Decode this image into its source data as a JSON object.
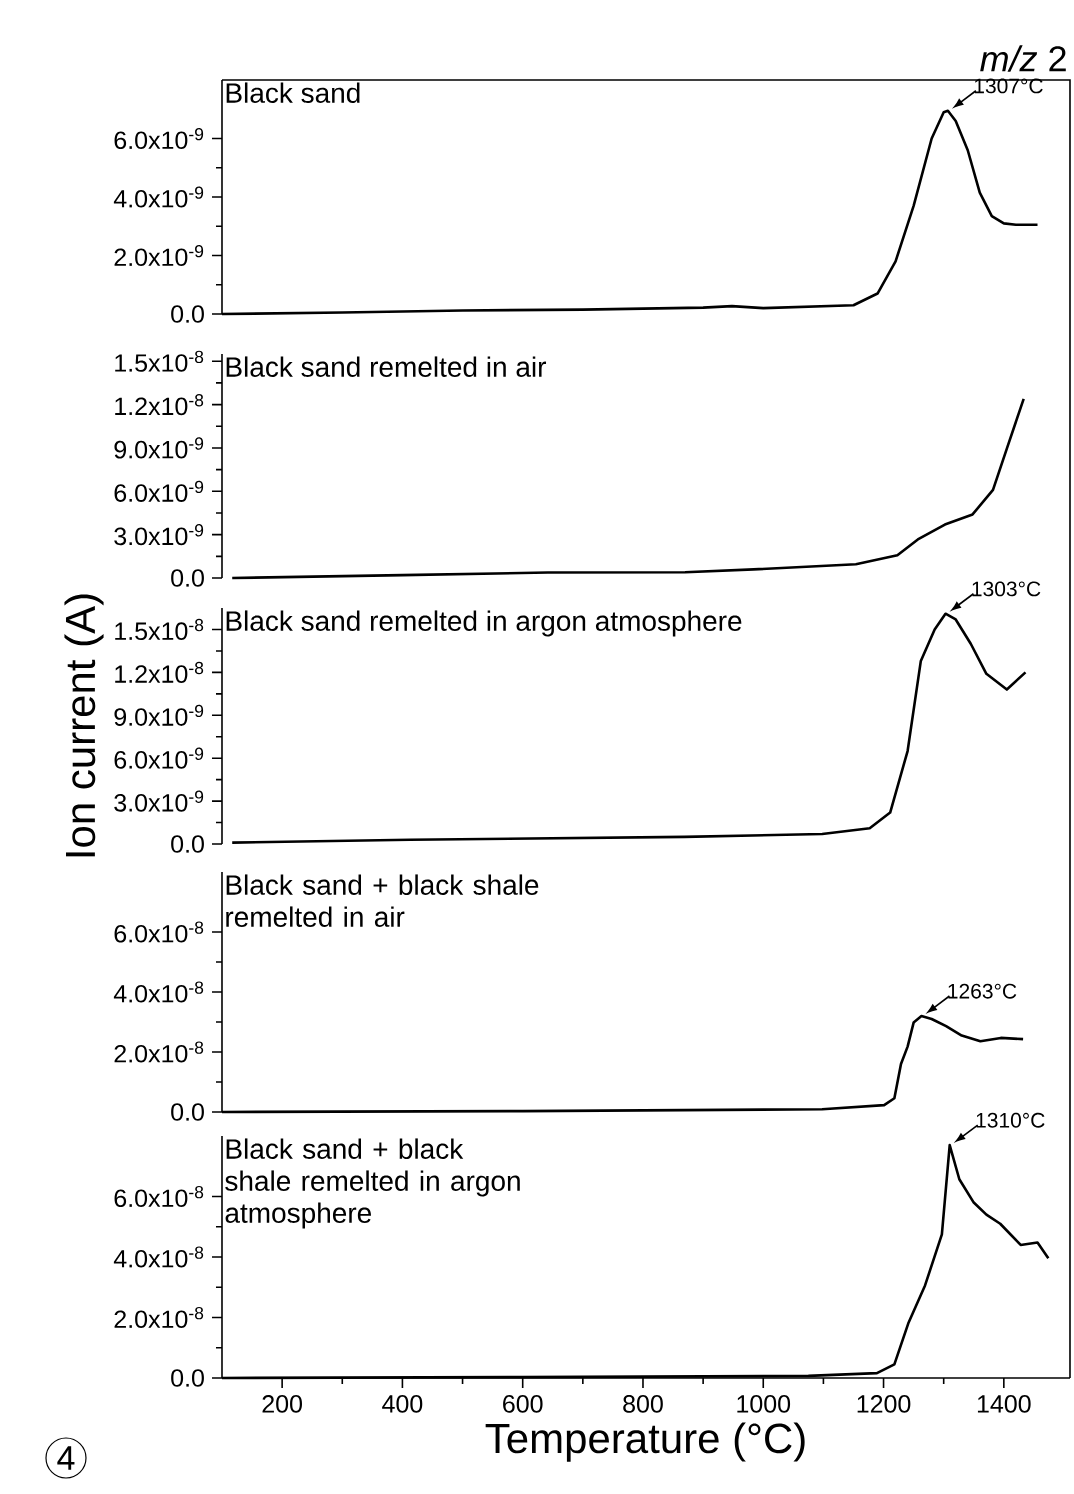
{
  "chart_data": [
    {
      "type": "line",
      "title": "*m/z* 2",
      "xlim": [
        100,
        1510
      ],
      "ylim": [
        0,
        8e-09
      ],
      "tick_labels": "y",
      "yticks": [
        {
          "value": 0,
          "label": "0.0"
        },
        {
          "value": 2e-09,
          "label": "2.0x10$^{-9}$"
        },
        {
          "value": 4e-09,
          "label": "4.0x10$^{-9}$"
        },
        {
          "value": 6e-09,
          "label": "6.0x10$^{-9}$"
        }
      ],
      "annotations": [
        {
          "text": "1307°C",
          "x": 1307,
          "y": 6.95e-09
        }
      ],
      "series": [
        {
          "name": "Black sand",
          "color": "#000000",
          "x": [
            100,
            300,
            500,
            700,
            900,
            948,
            1000,
            1150,
            1190,
            1220,
            1250,
            1280,
            1300,
            1307,
            1320,
            1340,
            1360,
            1380,
            1400,
            1420,
            1456
          ],
          "values": [
            0.0,
            5e-11,
            1.2e-10,
            1.5e-10,
            2.2e-10,
            2.7e-10,
            2e-10,
            3e-10,
            7e-10,
            1.8e-09,
            3.7e-09,
            6e-09,
            6.9e-09,
            6.95e-09,
            6.6e-09,
            5.6e-09,
            4.15e-09,
            3.35e-09,
            3.1e-09,
            3.05e-09,
            3.05e-09
          ]
        }
      ]
    },
    {
      "type": "line",
      "xlim": [
        100,
        1510
      ],
      "ylim": [
        0,
        1.55e-08
      ],
      "tick_labels": "y",
      "yticks": [
        {
          "value": 0,
          "label": "0.0"
        },
        {
          "value": 3e-09,
          "label": "3.0x10$^{-9}$"
        },
        {
          "value": 6e-09,
          "label": "6.0x10$^{-9}$"
        },
        {
          "value": 9e-09,
          "label": "9.0x10$^{-9}$"
        },
        {
          "value": 1.2e-08,
          "label": "1.2x10$^{-8}$"
        },
        {
          "value": 1.5e-08,
          "label": "1.5x10$^{-8}$"
        }
      ],
      "series": [
        {
          "name": "Black sand remelted in air",
          "color": "#000000",
          "x": [
            117,
            400,
            642,
            870,
            984,
            1154,
            1223,
            1257,
            1302,
            1348,
            1382,
            1405,
            1433
          ],
          "values": [
            0.0,
            2e-10,
            3.8e-10,
            4e-10,
            6e-10,
            9.5e-10,
            1.57e-09,
            2.67e-09,
            3.7e-09,
            4.4e-09,
            6.1e-09,
            8.95e-09,
            1.24e-08
          ]
        }
      ]
    },
    {
      "type": "line",
      "ylabel": "Ion current (A)",
      "xlim": [
        100,
        1510
      ],
      "ylim": [
        0,
        1.65e-08
      ],
      "tick_labels": "y",
      "yticks": [
        {
          "value": 0,
          "label": "0.0"
        },
        {
          "value": 3e-09,
          "label": "3.0x10$^{-9}$"
        },
        {
          "value": 6e-09,
          "label": "6.0x10$^{-9}$"
        },
        {
          "value": 9e-09,
          "label": "9.0x10$^{-9}$"
        },
        {
          "value": 1.2e-08,
          "label": "1.2x10$^{-8}$"
        },
        {
          "value": 1.5e-08,
          "label": "1.5x10$^{-8}$"
        }
      ],
      "annotations": [
        {
          "text": "1303°C",
          "x": 1303,
          "y": 1.61e-08
        }
      ],
      "series": [
        {
          "name": "Black sand remelted in argon atmosphere",
          "color": "#000000",
          "x": [
            117,
            413,
            869,
            1098,
            1177,
            1211,
            1240,
            1262,
            1285,
            1303,
            1320,
            1345,
            1371,
            1405,
            1436
          ],
          "values": [
            1e-10,
            3e-10,
            5e-10,
            7e-10,
            1.1e-09,
            2.2e-09,
            6.5e-09,
            1.28e-08,
            1.5e-08,
            1.61e-08,
            1.57e-08,
            1.4e-08,
            1.19e-08,
            1.08e-08,
            1.2e-08
          ]
        }
      ]
    },
    {
      "type": "line",
      "xlim": [
        100,
        1510
      ],
      "ylim": [
        0,
        8e-08
      ],
      "tick_labels": "y",
      "yticks": [
        {
          "value": 0,
          "label": "0.0"
        },
        {
          "value": 2e-08,
          "label": "2.0x10$^{-8}$"
        },
        {
          "value": 4e-08,
          "label": "4.0x10$^{-8}$"
        },
        {
          "value": 6e-08,
          "label": "6.0x10$^{-8}$"
        }
      ],
      "annotations": [
        {
          "text": "1263°C",
          "x": 1263,
          "y": 3.2e-08
        }
      ],
      "series": [
        {
          "name": "Black sand + black shale remelted in air",
          "color": "#000000",
          "x": [
            100,
            600,
            1098,
            1201,
            1218,
            1229,
            1240,
            1250,
            1263,
            1280,
            1304,
            1330,
            1361,
            1395,
            1432
          ],
          "values": [
            0.0,
            3e-10,
            9e-10,
            2.3e-09,
            4.6e-09,
            1.6e-08,
            2.18e-08,
            2.98e-08,
            3.2e-08,
            3.1e-08,
            2.86e-08,
            2.55e-08,
            2.36e-08,
            2.47e-08,
            2.43e-08
          ]
        }
      ]
    },
    {
      "type": "line",
      "xlabel": "Temperature (°C)",
      "xlim": [
        100,
        1510
      ],
      "ylim": [
        0,
        8e-08
      ],
      "xticks": [
        200,
        400,
        600,
        800,
        1000,
        1200,
        1400
      ],
      "yticks": [
        {
          "value": 0,
          "label": "0.0"
        },
        {
          "value": 2e-08,
          "label": "2.0x10$^{-8}$"
        },
        {
          "value": 4e-08,
          "label": "4.0x10$^{-8}$"
        },
        {
          "value": 6e-08,
          "label": "6.0x10$^{-8}$"
        }
      ],
      "annotations": [
        {
          "text": "1310°C",
          "x": 1310,
          "y": 7.7e-08
        },
        "4"
      ],
      "series": [
        {
          "name": "Black sand + black shale remelted in argon atmosphere",
          "color": "#000000",
          "x": [
            100,
            600,
            1075,
            1189,
            1218,
            1241,
            1269,
            1297,
            1310,
            1326,
            1350,
            1371,
            1394,
            1428,
            1456,
            1474
          ],
          "values": [
            0.0,
            3e-10,
            7e-10,
            1.6e-09,
            4.5e-09,
            1.8e-08,
            3.06e-08,
            4.75e-08,
            7.7e-08,
            6.57e-08,
            5.8e-08,
            5.4e-08,
            5.1e-08,
            4.4e-08,
            4.48e-08,
            3.96e-08
          ]
        }
      ]
    }
  ]
}
